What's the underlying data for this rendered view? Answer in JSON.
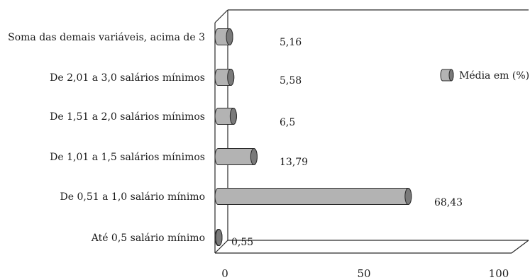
{
  "chart_data": {
    "type": "bar",
    "orientation": "horizontal",
    "style": "3d-cylinder",
    "categories": [
      "Soma das demais variáveis, acima de 3",
      "De 2,01 a 3,0 salários mínimos",
      "De 1,51 a 2,0 salários mínimos",
      "De 1,01 a 1,5 salários mínimos",
      "De 0,51 a 1,0 salário mínimo",
      "Até 0,5  salário mínimo"
    ],
    "series": [
      {
        "name": "Média em (%)",
        "values": [
          5.16,
          5.58,
          6.5,
          13.79,
          68.43,
          0.55
        ],
        "value_labels": [
          "5,16",
          "5,58",
          "6,5",
          "13,79",
          "68,43",
          "0,55"
        ],
        "color": "#b3b3b3"
      }
    ],
    "xlim": [
      0,
      100
    ],
    "xticks": [
      "0",
      "50",
      "100"
    ],
    "grid": false,
    "legend_position": "right"
  }
}
